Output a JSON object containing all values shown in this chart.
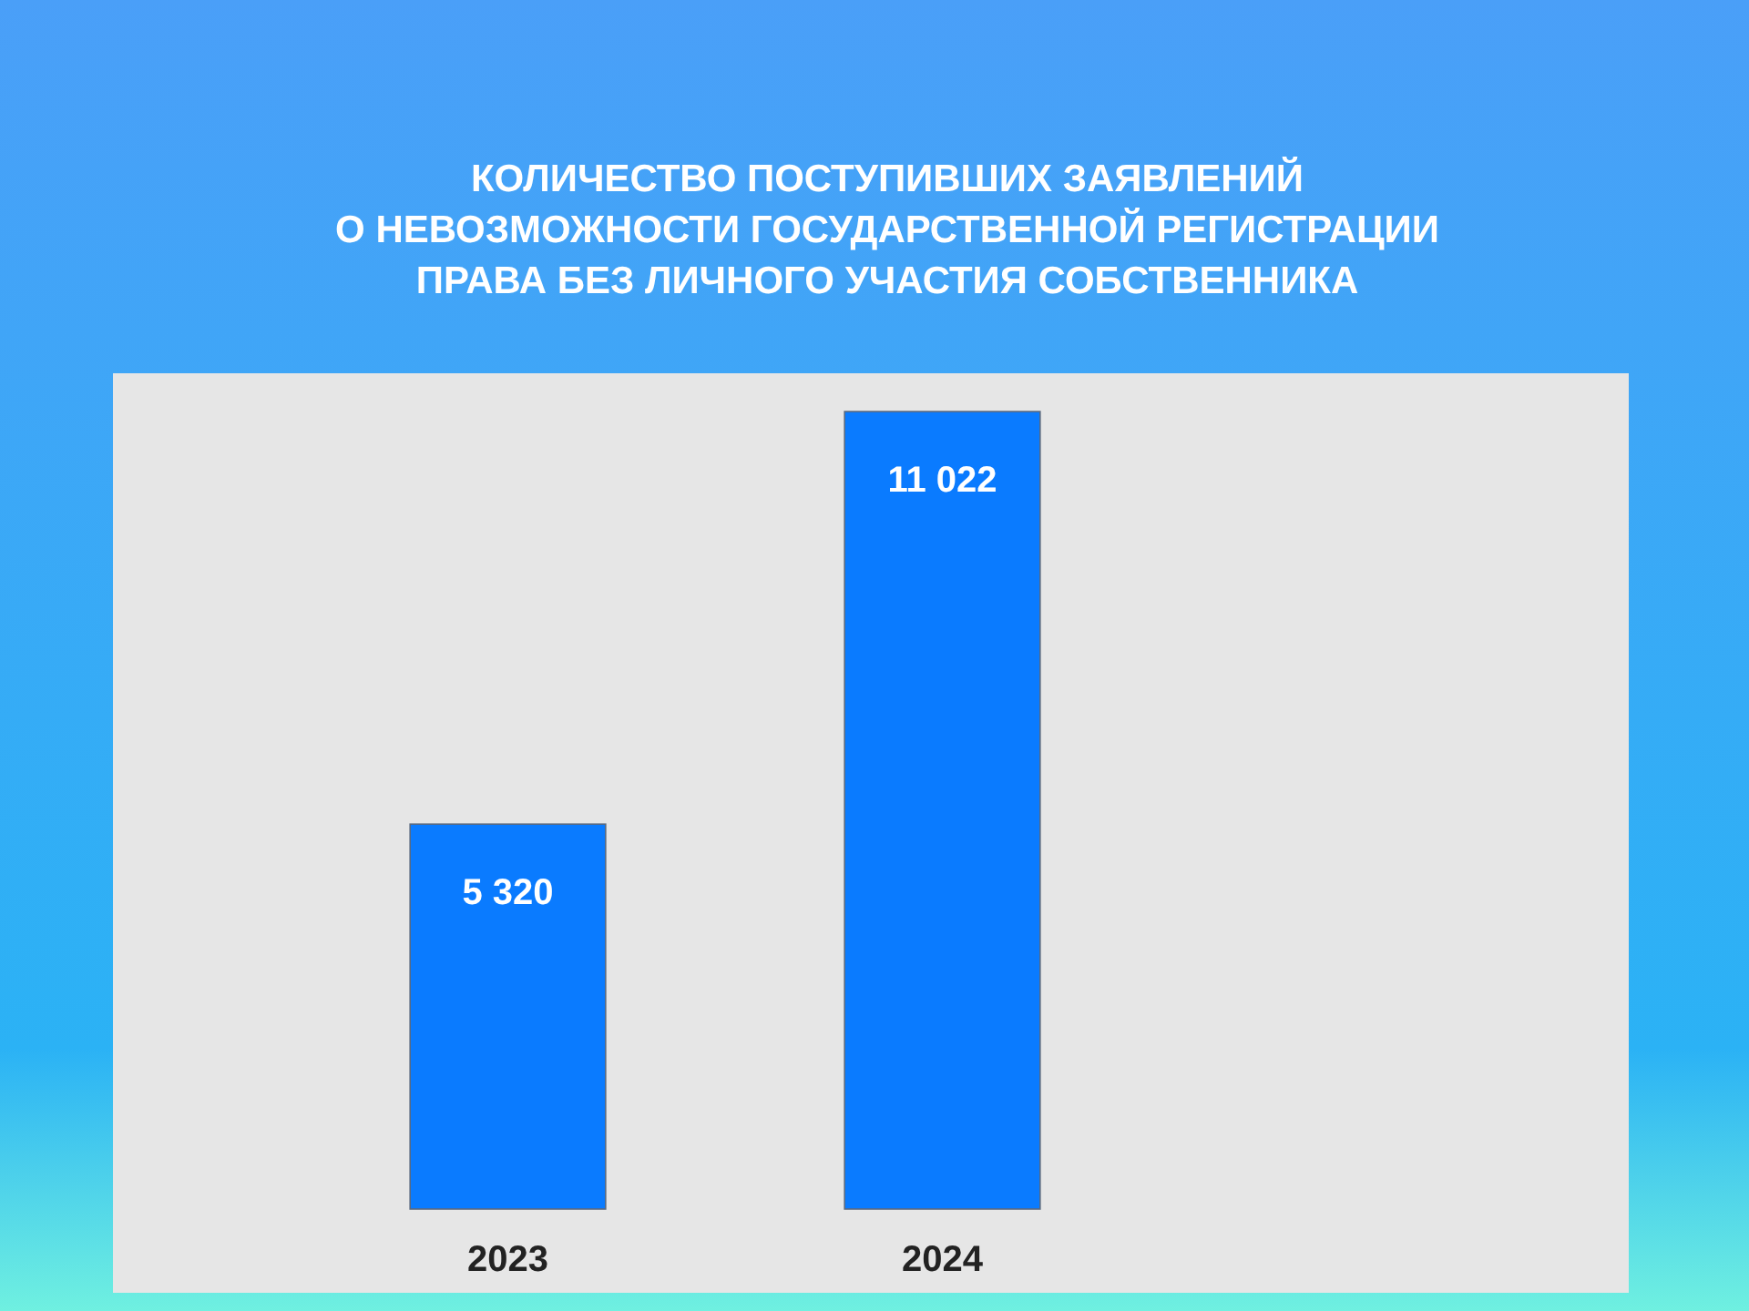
{
  "chart_data": {
    "type": "bar",
    "title": "КОЛИЧЕСТВО ПОСТУПИВШИХ ЗАЯВЛЕНИЙ\nО НЕВОЗМОЖНОСТИ ГОСУДАРСТВЕННОЙ РЕГИСТРАЦИИ\nПРАВА БЕЗ ЛИЧНОГО УЧАСТИЯ СОБСТВЕННИКА",
    "categories": [
      "2023",
      "2024"
    ],
    "values": [
      5320,
      11022
    ],
    "value_labels": [
      "5 320",
      "11 022"
    ],
    "color": "#0a7bff"
  }
}
